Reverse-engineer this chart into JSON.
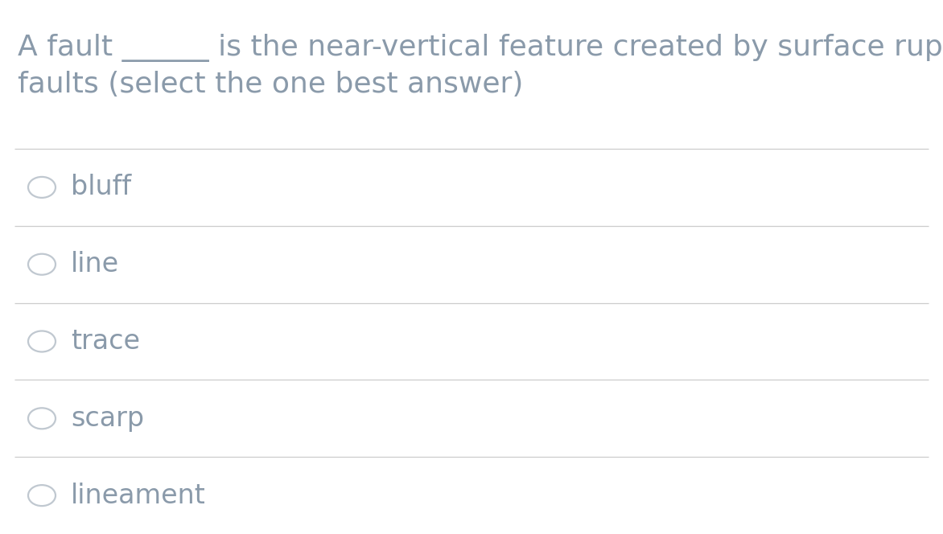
{
  "background_color": "#ffffff",
  "question_line1": "A fault ______ is the near-vertical feature created by surface rupture on",
  "question_line2": "faults (select the one best answer)",
  "options": [
    "bluff",
    "line",
    "trace",
    "scarp",
    "lineament"
  ],
  "text_color": "#8a9aaa",
  "line_color": "#cccccc",
  "circle_edge_color": "#c0c8d0",
  "font_size_question": 26,
  "font_size_options": 24,
  "fig_width": 11.72,
  "fig_height": 6.64,
  "dpi": 100
}
